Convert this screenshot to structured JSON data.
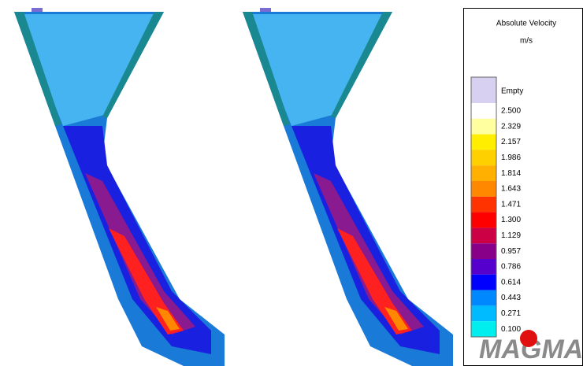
{
  "legend": {
    "title": "Absolute Velocity",
    "unit": "m/s",
    "items": [
      {
        "label": "Empty",
        "color": "#d8d0f0"
      },
      {
        "label": "2.500",
        "color": "#ffffff"
      },
      {
        "label": "2.329",
        "color": "#ffffa0"
      },
      {
        "label": "2.157",
        "color": "#ffee00"
      },
      {
        "label": "1.986",
        "color": "#ffd000"
      },
      {
        "label": "1.814",
        "color": "#ffb000"
      },
      {
        "label": "1.643",
        "color": "#ff8800"
      },
      {
        "label": "1.471",
        "color": "#ff3300"
      },
      {
        "label": "1.300",
        "color": "#ff0000"
      },
      {
        "label": "1.129",
        "color": "#cc0044"
      },
      {
        "label": "0.957",
        "color": "#880088"
      },
      {
        "label": "0.786",
        "color": "#5500cc"
      },
      {
        "label": "0.614",
        "color": "#0000ff"
      },
      {
        "label": "0.443",
        "color": "#0088ff"
      },
      {
        "label": "0.271",
        "color": "#00bbff"
      },
      {
        "label": "0.100",
        "color": "#00eeee"
      }
    ]
  },
  "logo": "MAGMA"
}
